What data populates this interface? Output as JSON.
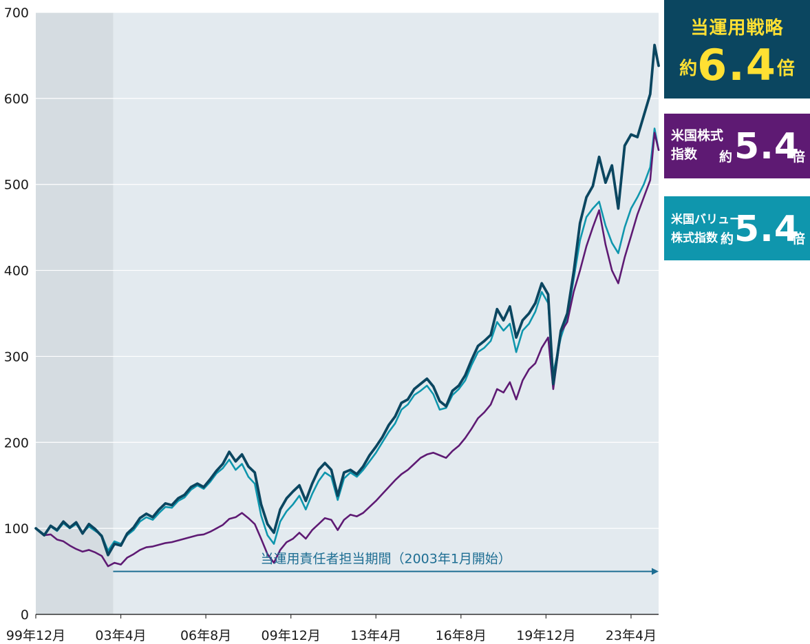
{
  "chart_data": {
    "type": "line",
    "ylim": [
      0,
      700
    ],
    "yticks": [
      "0",
      "100",
      "200",
      "300",
      "400",
      "500",
      "600",
      "700"
    ],
    "xticks": [
      "99年12月",
      "03年4月",
      "06年8月",
      "09年12月",
      "13年4月",
      "16年8月",
      "19年12月",
      "23年4月"
    ],
    "xtick_years": [
      1999.917,
      2003.25,
      2006.583,
      2009.917,
      2013.25,
      2016.583,
      2019.917,
      2023.25
    ],
    "x_range": [
      1999.917,
      2024.33
    ],
    "shaded_period": [
      1999.917,
      2002.95
    ],
    "annotation": {
      "text": "当運用責任者担当期間（2003年1月開始）",
      "from": 2002.95,
      "to": 2024.33,
      "y": 50
    },
    "colors": {
      "strategy": "#0b4660",
      "sp500": "#5e1a73",
      "value": "#0f96ad",
      "shade": "#d5dce1",
      "plot_bg": "#e3eaef",
      "arrow": "#1e6e93"
    },
    "series": [
      {
        "key": "strategy",
        "points": [
          [
            1999.92,
            100
          ],
          [
            2000.25,
            92
          ],
          [
            2000.5,
            103
          ],
          [
            2000.75,
            98
          ],
          [
            2001.0,
            108
          ],
          [
            2001.25,
            101
          ],
          [
            2001.5,
            107
          ],
          [
            2001.75,
            94
          ],
          [
            2002.0,
            105
          ],
          [
            2002.25,
            99
          ],
          [
            2002.5,
            91
          ],
          [
            2002.75,
            69
          ],
          [
            2003.0,
            82
          ],
          [
            2003.25,
            80
          ],
          [
            2003.5,
            94
          ],
          [
            2003.75,
            101
          ],
          [
            2004.0,
            112
          ],
          [
            2004.25,
            117
          ],
          [
            2004.5,
            113
          ],
          [
            2004.75,
            122
          ],
          [
            2005.0,
            129
          ],
          [
            2005.25,
            127
          ],
          [
            2005.5,
            135
          ],
          [
            2005.75,
            139
          ],
          [
            2006.0,
            148
          ],
          [
            2006.25,
            152
          ],
          [
            2006.5,
            148
          ],
          [
            2006.75,
            157
          ],
          [
            2007.0,
            167
          ],
          [
            2007.25,
            175
          ],
          [
            2007.5,
            189
          ],
          [
            2007.75,
            178
          ],
          [
            2008.0,
            186
          ],
          [
            2008.25,
            172
          ],
          [
            2008.5,
            165
          ],
          [
            2008.75,
            128
          ],
          [
            2009.0,
            105
          ],
          [
            2009.25,
            95
          ],
          [
            2009.5,
            122
          ],
          [
            2009.75,
            135
          ],
          [
            2010.0,
            143
          ],
          [
            2010.25,
            150
          ],
          [
            2010.5,
            132
          ],
          [
            2010.75,
            152
          ],
          [
            2011.0,
            168
          ],
          [
            2011.25,
            176
          ],
          [
            2011.5,
            168
          ],
          [
            2011.75,
            138
          ],
          [
            2012.0,
            165
          ],
          [
            2012.25,
            168
          ],
          [
            2012.5,
            163
          ],
          [
            2012.75,
            172
          ],
          [
            2013.0,
            185
          ],
          [
            2013.25,
            195
          ],
          [
            2013.5,
            206
          ],
          [
            2013.75,
            220
          ],
          [
            2014.0,
            230
          ],
          [
            2014.25,
            246
          ],
          [
            2014.5,
            250
          ],
          [
            2014.75,
            262
          ],
          [
            2015.0,
            268
          ],
          [
            2015.25,
            274
          ],
          [
            2015.5,
            265
          ],
          [
            2015.75,
            248
          ],
          [
            2016.0,
            242
          ],
          [
            2016.25,
            260
          ],
          [
            2016.5,
            266
          ],
          [
            2016.75,
            278
          ],
          [
            2017.0,
            296
          ],
          [
            2017.25,
            312
          ],
          [
            2017.5,
            318
          ],
          [
            2017.75,
            325
          ],
          [
            2018.0,
            355
          ],
          [
            2018.25,
            342
          ],
          [
            2018.5,
            358
          ],
          [
            2018.75,
            322
          ],
          [
            2019.0,
            342
          ],
          [
            2019.25,
            350
          ],
          [
            2019.5,
            362
          ],
          [
            2019.75,
            385
          ],
          [
            2020.0,
            372
          ],
          [
            2020.2,
            268
          ],
          [
            2020.5,
            330
          ],
          [
            2020.75,
            350
          ],
          [
            2021.0,
            398
          ],
          [
            2021.25,
            455
          ],
          [
            2021.5,
            485
          ],
          [
            2021.75,
            498
          ],
          [
            2022.0,
            532
          ],
          [
            2022.25,
            502
          ],
          [
            2022.5,
            522
          ],
          [
            2022.75,
            472
          ],
          [
            2023.0,
            545
          ],
          [
            2023.25,
            558
          ],
          [
            2023.5,
            555
          ],
          [
            2023.75,
            580
          ],
          [
            2024.0,
            605
          ],
          [
            2024.17,
            662
          ],
          [
            2024.33,
            638
          ]
        ]
      },
      {
        "key": "sp500",
        "points": [
          [
            1999.92,
            100
          ],
          [
            2000.25,
            92
          ],
          [
            2000.5,
            93
          ],
          [
            2000.75,
            87
          ],
          [
            2001.0,
            85
          ],
          [
            2001.25,
            80
          ],
          [
            2001.5,
            76
          ],
          [
            2001.75,
            73
          ],
          [
            2002.0,
            75
          ],
          [
            2002.25,
            72
          ],
          [
            2002.5,
            68
          ],
          [
            2002.75,
            56
          ],
          [
            2003.0,
            60
          ],
          [
            2003.25,
            58
          ],
          [
            2003.5,
            66
          ],
          [
            2003.75,
            70
          ],
          [
            2004.0,
            75
          ],
          [
            2004.25,
            78
          ],
          [
            2004.5,
            79
          ],
          [
            2004.75,
            81
          ],
          [
            2005.0,
            83
          ],
          [
            2005.25,
            84
          ],
          [
            2005.5,
            86
          ],
          [
            2005.75,
            88
          ],
          [
            2006.0,
            90
          ],
          [
            2006.25,
            92
          ],
          [
            2006.5,
            93
          ],
          [
            2006.75,
            96
          ],
          [
            2007.0,
            100
          ],
          [
            2007.25,
            104
          ],
          [
            2007.5,
            111
          ],
          [
            2007.75,
            113
          ],
          [
            2008.0,
            118
          ],
          [
            2008.25,
            112
          ],
          [
            2008.5,
            105
          ],
          [
            2008.75,
            88
          ],
          [
            2009.0,
            70
          ],
          [
            2009.25,
            60
          ],
          [
            2009.5,
            75
          ],
          [
            2009.75,
            84
          ],
          [
            2010.0,
            88
          ],
          [
            2010.25,
            95
          ],
          [
            2010.5,
            88
          ],
          [
            2010.75,
            98
          ],
          [
            2011.0,
            105
          ],
          [
            2011.25,
            112
          ],
          [
            2011.5,
            110
          ],
          [
            2011.75,
            98
          ],
          [
            2012.0,
            110
          ],
          [
            2012.25,
            116
          ],
          [
            2012.5,
            114
          ],
          [
            2012.75,
            118
          ],
          [
            2013.0,
            125
          ],
          [
            2013.25,
            132
          ],
          [
            2013.5,
            140
          ],
          [
            2013.75,
            148
          ],
          [
            2014.0,
            156
          ],
          [
            2014.25,
            163
          ],
          [
            2014.5,
            168
          ],
          [
            2014.75,
            175
          ],
          [
            2015.0,
            182
          ],
          [
            2015.25,
            186
          ],
          [
            2015.5,
            188
          ],
          [
            2015.75,
            185
          ],
          [
            2016.0,
            182
          ],
          [
            2016.25,
            190
          ],
          [
            2016.5,
            196
          ],
          [
            2016.75,
            205
          ],
          [
            2017.0,
            216
          ],
          [
            2017.25,
            228
          ],
          [
            2017.5,
            235
          ],
          [
            2017.75,
            244
          ],
          [
            2018.0,
            262
          ],
          [
            2018.25,
            258
          ],
          [
            2018.5,
            270
          ],
          [
            2018.75,
            250
          ],
          [
            2019.0,
            272
          ],
          [
            2019.25,
            285
          ],
          [
            2019.5,
            292
          ],
          [
            2019.75,
            310
          ],
          [
            2020.0,
            322
          ],
          [
            2020.2,
            262
          ],
          [
            2020.5,
            328
          ],
          [
            2020.75,
            340
          ],
          [
            2021.0,
            375
          ],
          [
            2021.25,
            400
          ],
          [
            2021.5,
            428
          ],
          [
            2021.75,
            450
          ],
          [
            2022.0,
            470
          ],
          [
            2022.25,
            430
          ],
          [
            2022.5,
            400
          ],
          [
            2022.75,
            385
          ],
          [
            2023.0,
            415
          ],
          [
            2023.25,
            440
          ],
          [
            2023.5,
            465
          ],
          [
            2023.75,
            485
          ],
          [
            2024.0,
            505
          ],
          [
            2024.17,
            560
          ],
          [
            2024.33,
            540
          ]
        ]
      },
      {
        "key": "value",
        "points": [
          [
            1999.92,
            100
          ],
          [
            2000.25,
            93
          ],
          [
            2000.5,
            102
          ],
          [
            2000.75,
            97
          ],
          [
            2001.0,
            106
          ],
          [
            2001.25,
            100
          ],
          [
            2001.5,
            105
          ],
          [
            2001.75,
            95
          ],
          [
            2002.0,
            102
          ],
          [
            2002.25,
            97
          ],
          [
            2002.5,
            92
          ],
          [
            2002.75,
            74
          ],
          [
            2003.0,
            85
          ],
          [
            2003.25,
            82
          ],
          [
            2003.5,
            92
          ],
          [
            2003.75,
            98
          ],
          [
            2004.0,
            108
          ],
          [
            2004.25,
            113
          ],
          [
            2004.5,
            110
          ],
          [
            2004.75,
            118
          ],
          [
            2005.0,
            125
          ],
          [
            2005.25,
            124
          ],
          [
            2005.5,
            132
          ],
          [
            2005.75,
            136
          ],
          [
            2006.0,
            145
          ],
          [
            2006.25,
            150
          ],
          [
            2006.5,
            146
          ],
          [
            2006.75,
            154
          ],
          [
            2007.0,
            164
          ],
          [
            2007.25,
            170
          ],
          [
            2007.5,
            180
          ],
          [
            2007.75,
            168
          ],
          [
            2008.0,
            175
          ],
          [
            2008.25,
            160
          ],
          [
            2008.5,
            152
          ],
          [
            2008.75,
            115
          ],
          [
            2009.0,
            92
          ],
          [
            2009.25,
            82
          ],
          [
            2009.5,
            108
          ],
          [
            2009.75,
            120
          ],
          [
            2010.0,
            128
          ],
          [
            2010.25,
            138
          ],
          [
            2010.5,
            122
          ],
          [
            2010.75,
            140
          ],
          [
            2011.0,
            155
          ],
          [
            2011.25,
            165
          ],
          [
            2011.5,
            160
          ],
          [
            2011.75,
            133
          ],
          [
            2012.0,
            158
          ],
          [
            2012.25,
            165
          ],
          [
            2012.5,
            160
          ],
          [
            2012.75,
            168
          ],
          [
            2013.0,
            178
          ],
          [
            2013.25,
            188
          ],
          [
            2013.5,
            200
          ],
          [
            2013.75,
            212
          ],
          [
            2014.0,
            222
          ],
          [
            2014.25,
            238
          ],
          [
            2014.5,
            244
          ],
          [
            2014.75,
            255
          ],
          [
            2015.0,
            260
          ],
          [
            2015.25,
            266
          ],
          [
            2015.5,
            256
          ],
          [
            2015.75,
            238
          ],
          [
            2016.0,
            240
          ],
          [
            2016.25,
            255
          ],
          [
            2016.5,
            262
          ],
          [
            2016.75,
            272
          ],
          [
            2017.0,
            290
          ],
          [
            2017.25,
            305
          ],
          [
            2017.5,
            310
          ],
          [
            2017.75,
            318
          ],
          [
            2018.0,
            340
          ],
          [
            2018.25,
            330
          ],
          [
            2018.5,
            338
          ],
          [
            2018.75,
            305
          ],
          [
            2019.0,
            330
          ],
          [
            2019.25,
            338
          ],
          [
            2019.5,
            352
          ],
          [
            2019.75,
            375
          ],
          [
            2020.0,
            362
          ],
          [
            2020.2,
            280
          ],
          [
            2020.5,
            322
          ],
          [
            2020.75,
            345
          ],
          [
            2021.0,
            390
          ],
          [
            2021.25,
            435
          ],
          [
            2021.5,
            462
          ],
          [
            2021.75,
            472
          ],
          [
            2022.0,
            480
          ],
          [
            2022.25,
            452
          ],
          [
            2022.5,
            432
          ],
          [
            2022.75,
            420
          ],
          [
            2023.0,
            450
          ],
          [
            2023.25,
            472
          ],
          [
            2023.5,
            485
          ],
          [
            2023.75,
            500
          ],
          [
            2024.0,
            520
          ],
          [
            2024.17,
            565
          ],
          [
            2024.33,
            540
          ]
        ]
      }
    ]
  },
  "legend": {
    "strategy": {
      "title": "当運用戦略",
      "prefix": "約",
      "value": "6.4",
      "suffix": "倍"
    },
    "sp500": {
      "line1": "米国株式",
      "line2": "指数",
      "prefix": "約",
      "value": "5.4",
      "suffix": "倍"
    },
    "value": {
      "line1": "米国バリュー",
      "line2": "株式指数",
      "prefix": "約",
      "value": "5.4",
      "suffix": "倍"
    }
  }
}
